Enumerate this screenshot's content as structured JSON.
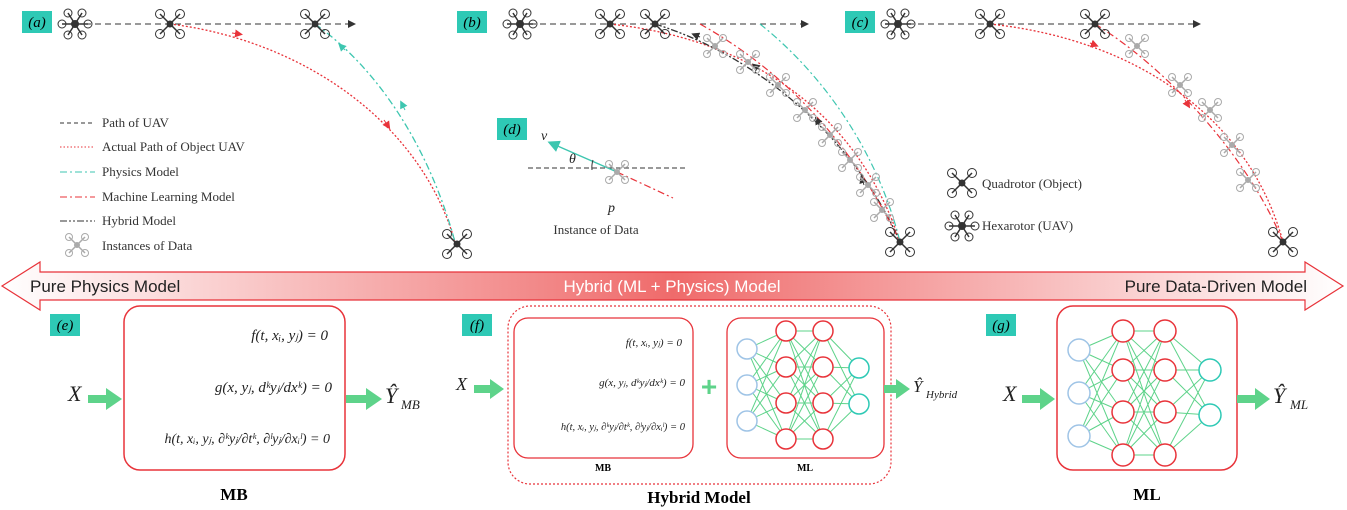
{
  "panels": {
    "a": "(a)",
    "b": "(b)",
    "c": "(c)",
    "d": "(d)",
    "e": "(e)",
    "f": "(f)",
    "g": "(g)"
  },
  "legend": {
    "items": [
      {
        "label": "Path of UAV",
        "color": "#333333",
        "style": "dashed"
      },
      {
        "label": "Actual Path of Object UAV",
        "color": "#e8333a",
        "style": "dotted"
      },
      {
        "label": "Physics Model",
        "color": "#3ec6b0",
        "style": "dashdot"
      },
      {
        "label": "Machine Learning Model",
        "color": "#e8333a",
        "style": "dashdot"
      },
      {
        "label": "Hybrid Model",
        "color": "#333333",
        "style": "dashdotdot"
      },
      {
        "label": "Instances of Data",
        "color": "#aaaaaa",
        "style": "icon"
      }
    ]
  },
  "vehicles": {
    "quadrotor": "Quadrotor (Object)",
    "hexarotor": "Hexarotor (UAV)"
  },
  "instance": {
    "v": "v",
    "theta": "θ",
    "p": "p",
    "caption": "Instance of Data"
  },
  "band": {
    "left": "Pure Physics Model",
    "center": "Hybrid (ML + Physics) Model",
    "right": "Pure Data-Driven Model"
  },
  "mb_panel": {
    "input": "X",
    "output": "Ŷ",
    "output_sub": "MB",
    "eq1": "f(t, xᵢ, yⱼ) = 0",
    "eq2": "g(x, yⱼ, dᵏyⱼ/dxᵏ) = 0",
    "eq3": "h(t, xᵢ, yⱼ, ∂ᵏyⱼ/∂tᵏ, ∂ˡyⱼ/∂xᵢˡ) = 0",
    "label": "MB"
  },
  "hybrid_panel": {
    "input": "X",
    "output": "Ŷ",
    "output_sub": "Hybrid",
    "plus": "+",
    "mb_label": "MB",
    "ml_label": "ML",
    "label": "Hybrid Model"
  },
  "ml_panel": {
    "input": "X",
    "output": "Ŷ",
    "output_sub": "ML",
    "label": "ML"
  },
  "colors": {
    "red": "#e8333a",
    "teal": "#3ec6b0",
    "green_arrow": "#5ed38a",
    "tag_bg": "#2ec9b5",
    "node_blue": "#9fc4e6",
    "node_red": "#e8333a",
    "node_teal": "#2ec9b5"
  }
}
